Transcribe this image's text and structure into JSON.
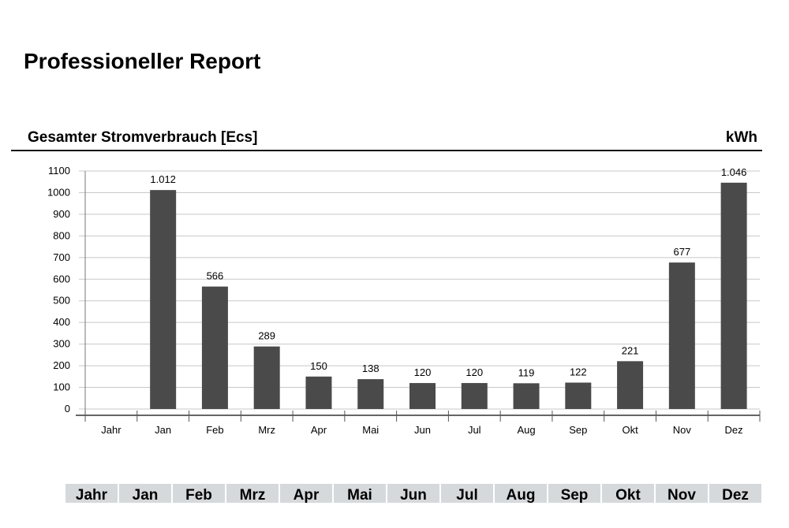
{
  "report": {
    "title": "Professioneller Report"
  },
  "section": {
    "title": "Gesamter Stromverbrauch [Ecs]",
    "unit": "kWh"
  },
  "table": {
    "headers": [
      "Jahr",
      "Jan",
      "Feb",
      "Mrz",
      "Apr",
      "Mai",
      "Jun",
      "Jul",
      "Aug",
      "Sep",
      "Okt",
      "Nov",
      "Dez"
    ]
  },
  "chart_data": {
    "type": "bar",
    "categories": [
      "Jahr",
      "Jan",
      "Feb",
      "Mrz",
      "Apr",
      "Mai",
      "Jun",
      "Jul",
      "Aug",
      "Sep",
      "Okt",
      "Nov",
      "Dez"
    ],
    "values": [
      null,
      1012,
      566,
      289,
      150,
      138,
      120,
      120,
      119,
      122,
      221,
      677,
      1046
    ],
    "value_labels": [
      "",
      "1.012",
      "566",
      "289",
      "150",
      "138",
      "120",
      "120",
      "119",
      "122",
      "221",
      "677",
      "1.046"
    ],
    "ylim": [
      0,
      1100
    ],
    "yticks": [
      0,
      100,
      200,
      300,
      400,
      500,
      600,
      700,
      800,
      900,
      1000,
      1100
    ],
    "grid": true,
    "bar_color": "#4a4a4a",
    "grid_color": "#c8c8c8"
  }
}
